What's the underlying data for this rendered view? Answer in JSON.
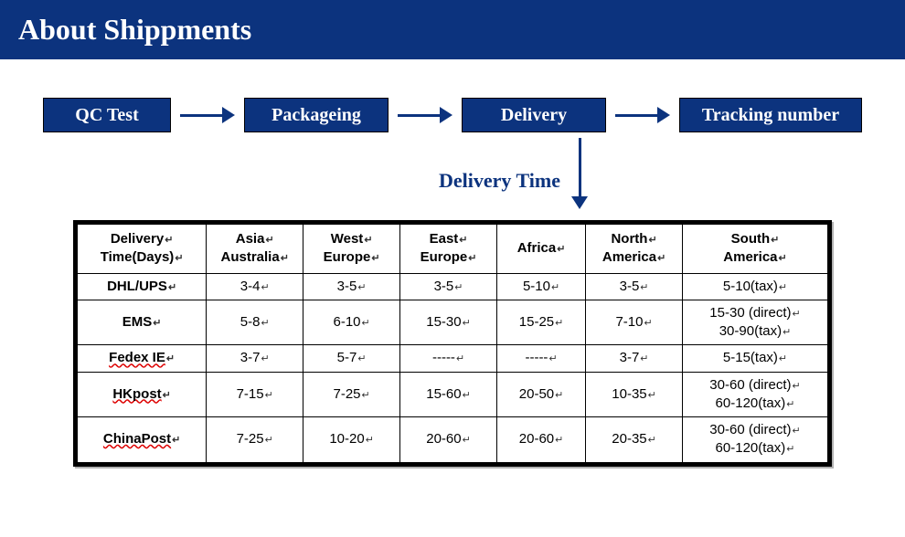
{
  "colors": {
    "brand_blue": "#0c337e",
    "white": "#ffffff",
    "black": "#000000"
  },
  "header": {
    "title": "About  Shippments"
  },
  "flow": {
    "steps": [
      "QC  Test",
      "Packageing",
      "Delivery",
      "Tracking number"
    ],
    "box_bg": "#0c337e",
    "box_fg": "#ffffff",
    "arrow_color": "#0c337e"
  },
  "delivery_time_label": "Delivery Time",
  "table": {
    "glyph": "↵",
    "columns": [
      "Delivery Time(Days)",
      "Asia Australia",
      "West Europe",
      "East Europe",
      "Africa",
      "North America",
      "South America"
    ],
    "column_widths_pct": [
      16,
      12,
      12,
      12,
      11,
      12,
      18
    ],
    "rows": [
      {
        "carrier": "DHL/UPS",
        "cells": [
          "3-4",
          "3-5",
          "3-5",
          "5-10",
          "3-5",
          "5-10(tax)"
        ]
      },
      {
        "carrier": "EMS",
        "cells": [
          "5-8",
          "6-10",
          "15-30",
          "15-25",
          "7-10",
          "15-30 (direct)\n30-90(tax)"
        ]
      },
      {
        "carrier": "Fedex IE",
        "underline": true,
        "cells": [
          "3-7",
          "5-7",
          "-----",
          "-----",
          "3-7",
          "5-15(tax)"
        ]
      },
      {
        "carrier": "HKpost",
        "underline": true,
        "cells": [
          "7-15",
          "7-25",
          "15-60",
          "20-50",
          "10-35",
          "30-60 (direct)\n60-120(tax)"
        ]
      },
      {
        "carrier": "ChinaPost",
        "underline": true,
        "cells": [
          "7-25",
          "10-20",
          "20-60",
          "20-60",
          "20-35",
          "30-60 (direct)\n60-120(tax)"
        ]
      }
    ]
  }
}
